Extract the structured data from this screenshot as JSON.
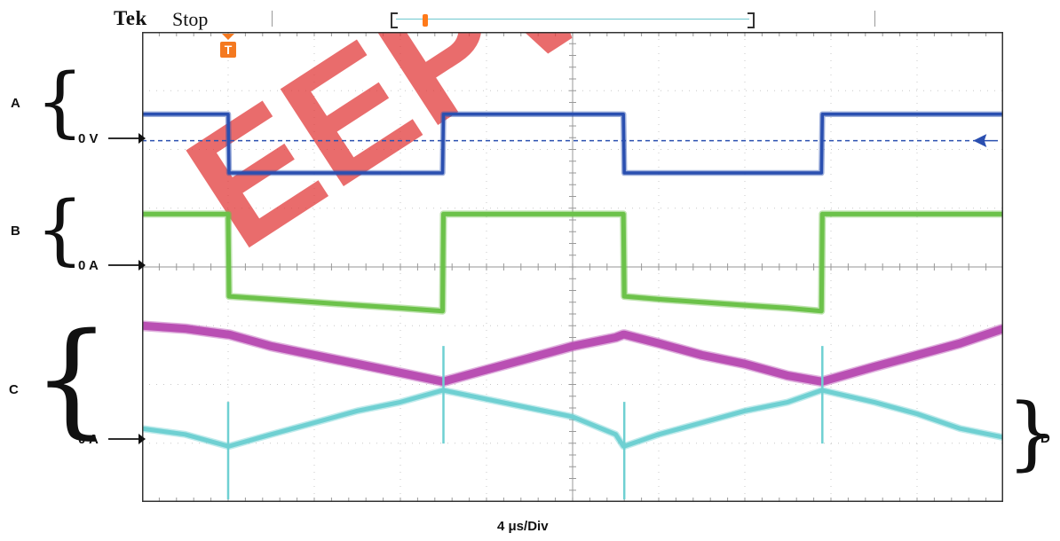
{
  "header": {
    "brand": "Tek",
    "state": "Stop"
  },
  "labels": {
    "a": "A",
    "b": "B",
    "c": "C",
    "d": "D",
    "zero_a": "0 V",
    "zero_b": "0 A",
    "zero_c": "0 A"
  },
  "colors": {
    "ch_a": "#2a4fb0",
    "ch_b": "#6cc24a",
    "ch_c": "#b94fb3",
    "ch_d": "#6fd0d2",
    "trigger": "#f47920",
    "watermark": "#e23b3b"
  },
  "watermark_text": "EEPW",
  "chart_data": {
    "type": "line",
    "title": "",
    "xlabel": "4 μs/Div",
    "ylabel": "",
    "x_divisions": 10,
    "y_divisions": 8,
    "grid": true,
    "x": [
      0,
      0.5,
      1.0,
      1.01,
      1.5,
      2.0,
      2.5,
      3.0,
      3.49,
      3.5,
      4.0,
      4.5,
      5.0,
      5.5,
      5.59,
      5.6,
      6.0,
      6.5,
      7.0,
      7.5,
      7.89,
      7.9,
      8.5,
      9.0,
      9.5,
      10.0
    ],
    "series": [
      {
        "name": "A",
        "unit": "div",
        "values": [
          1.4,
          1.4,
          1.4,
          2.4,
          2.4,
          2.4,
          2.4,
          2.4,
          2.4,
          1.4,
          1.4,
          1.4,
          1.4,
          1.4,
          1.4,
          2.4,
          2.4,
          2.4,
          2.4,
          2.4,
          2.4,
          1.4,
          1.4,
          1.4,
          1.4,
          1.4
        ]
      },
      {
        "name": "B",
        "unit": "div",
        "values": [
          3.1,
          3.1,
          3.1,
          4.5,
          4.55,
          4.6,
          4.65,
          4.7,
          4.75,
          3.1,
          3.1,
          3.1,
          3.1,
          3.1,
          3.1,
          4.5,
          4.55,
          4.6,
          4.65,
          4.7,
          4.75,
          3.1,
          3.1,
          3.1,
          3.1,
          3.1
        ]
      },
      {
        "name": "C",
        "unit": "div",
        "values": [
          5.0,
          5.05,
          5.15,
          5.15,
          5.35,
          5.5,
          5.65,
          5.8,
          5.95,
          5.95,
          5.75,
          5.55,
          5.35,
          5.2,
          5.15,
          5.15,
          5.3,
          5.5,
          5.65,
          5.85,
          5.95,
          5.95,
          5.7,
          5.5,
          5.3,
          5.05
        ]
      },
      {
        "name": "D",
        "unit": "div",
        "values": [
          6.75,
          6.85,
          7.05,
          7.05,
          6.85,
          6.65,
          6.45,
          6.3,
          6.1,
          6.1,
          6.25,
          6.4,
          6.55,
          6.85,
          7.05,
          7.05,
          6.85,
          6.65,
          6.45,
          6.3,
          6.1,
          6.1,
          6.3,
          6.5,
          6.75,
          6.9
        ]
      }
    ],
    "cursor_level_div": 1.85
  }
}
